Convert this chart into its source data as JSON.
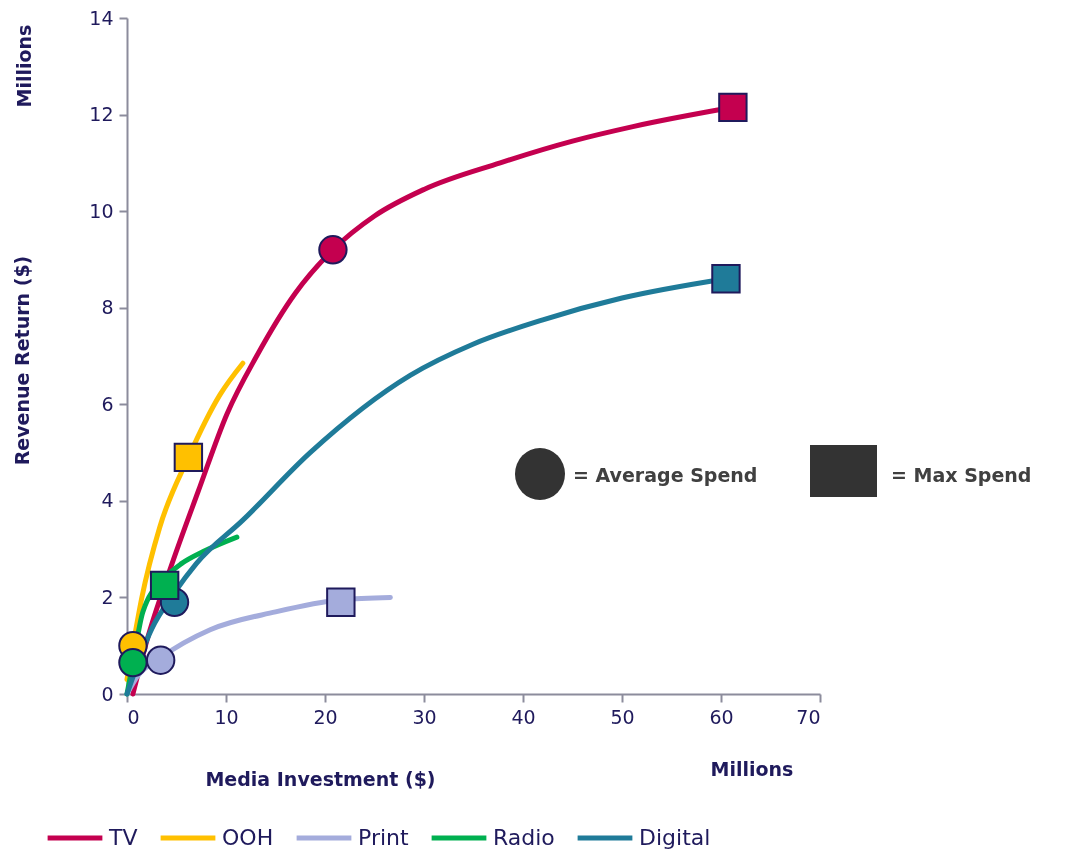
{
  "chart_data": {
    "type": "line",
    "xlabel": "Media Investment ($)",
    "ylabel": "Revenue Return ($)",
    "annotations": [
      "Millions",
      "Millions",
      "= Average Spend",
      "= Max Spend"
    ],
    "xlim": [
      0,
      70
    ],
    "xticks": [
      0,
      10,
      20,
      30,
      40,
      50,
      60,
      70
    ],
    "ylim": [
      0,
      14
    ],
    "yticks": [
      0,
      2,
      4,
      6,
      8,
      10,
      12,
      14
    ],
    "legend": "bottom",
    "series": [
      {
        "name": "TV",
        "color": "#c4004f",
        "x": [
          0.6,
          2,
          4.3,
          7.2,
          10.1,
          13.1,
          17,
          20.8,
          25,
          30,
          37.7,
          45,
          51.1,
          61.2
        ],
        "values": [
          0,
          1.1,
          2.55,
          4.2,
          5.8,
          7.0,
          8.3,
          9.2,
          9.9,
          10.45,
          11.0,
          11.45,
          11.75,
          12.15
        ]
      },
      {
        "name": "OOH",
        "color": "#ffc000",
        "x": [
          0,
          0.6,
          1.5,
          3.3,
          6.2,
          9.4,
          11.7
        ],
        "values": [
          0.3,
          1.0,
          2.0,
          3.45,
          4.9,
          6.2,
          6.85
        ]
      },
      {
        "name": "Print",
        "color": "#a4acdc",
        "x": [
          0,
          1,
          3.4,
          8.4,
          15,
          21.6,
          26.6
        ],
        "values": [
          0,
          0.35,
          0.75,
          1.33,
          1.7,
          1.95,
          2.0
        ]
      },
      {
        "name": "Radio",
        "color": "#00b050",
        "x": [
          0,
          0.6,
          1.6,
          3.8,
          5.5,
          7.7,
          11.1
        ],
        "values": [
          0,
          0.65,
          1.7,
          2.4,
          2.7,
          2.95,
          3.25
        ]
      },
      {
        "name": "Digital",
        "color": "#1f7b99",
        "x": [
          0,
          2.5,
          4.8,
          7,
          11.7,
          18.5,
          28.6,
          35,
          42,
          50,
          60.5
        ],
        "values": [
          0,
          1.35,
          2.1,
          2.7,
          3.6,
          5.0,
          6.6,
          7.25,
          7.75,
          8.2,
          8.6
        ]
      },
      {
        "type": "scatter",
        "marker": "circle",
        "x": [
          20.8,
          0.6,
          3.4,
          0.6,
          4.8
        ],
        "values": [
          9.2,
          1.0,
          0.7,
          0.65,
          1.9
        ],
        "colors": [
          "#c4004f",
          "#ffc000",
          "#a4acdc",
          "#00b050",
          "#1f7b99"
        ]
      },
      {
        "type": "scatter",
        "marker": "square",
        "x": [
          61.2,
          6.2,
          21.6,
          3.8,
          60.5
        ],
        "values": [
          12.15,
          4.9,
          1.9,
          2.25,
          8.6
        ],
        "colors": [
          "#c4004f",
          "#ffc000",
          "#a4acdc",
          "#00b050",
          "#1f7b99"
        ]
      }
    ]
  }
}
